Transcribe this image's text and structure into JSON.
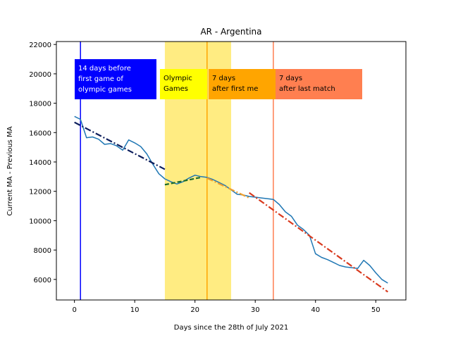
{
  "chart_data": {
    "type": "line",
    "title": "AR - Argentina",
    "xlabel": "Days since the 28th of July 2021",
    "ylabel": "Current MA - Previous MA",
    "xlim": [
      -3,
      55
    ],
    "ylim": [
      4600,
      22200
    ],
    "xticks": [
      0,
      10,
      20,
      30,
      40,
      50
    ],
    "yticks": [
      6000,
      8000,
      10000,
      12000,
      14000,
      16000,
      18000,
      20000,
      22000
    ],
    "grid": false,
    "series": [
      {
        "color": "#1f77b4",
        "x": [
          0,
          1,
          2,
          3,
          4,
          5,
          6,
          7,
          8,
          9,
          10,
          11,
          12,
          13,
          14,
          15,
          16,
          17,
          18,
          19,
          20,
          21,
          22,
          23,
          24,
          25,
          26,
          27,
          28,
          29,
          30,
          31,
          32,
          33,
          34,
          35,
          36,
          37,
          38,
          39,
          40,
          41,
          42,
          43,
          44,
          45,
          46,
          47,
          48,
          49,
          50,
          51,
          52
        ],
        "values": [
          17100,
          16900,
          15650,
          15700,
          15550,
          15200,
          15250,
          15100,
          14800,
          15500,
          15300,
          15050,
          14550,
          13850,
          13200,
          12850,
          12650,
          12500,
          12650,
          12900,
          13100,
          13000,
          12950,
          12800,
          12600,
          12400,
          12100,
          11800,
          11750,
          11650,
          11600,
          11550,
          11500,
          11450,
          11100,
          10600,
          10300,
          9700,
          9400,
          9000,
          7750,
          7500,
          7350,
          7150,
          6950,
          6850,
          6800,
          6750,
          7300,
          6950,
          6450,
          6000,
          5750
        ]
      }
    ],
    "trend_lines": [
      {
        "color": "#0c1d5c",
        "style": "dashdot",
        "x": [
          0,
          15
        ],
        "values": [
          16700,
          13500
        ]
      },
      {
        "color": "#1b6b2a",
        "style": "dashed",
        "x": [
          15,
          21
        ],
        "values": [
          12450,
          12950
        ]
      },
      {
        "color": "#f0a030",
        "style": "dashdot",
        "x": [
          22,
          29
        ],
        "values": [
          12900,
          11550
        ]
      },
      {
        "color": "#d93a1e",
        "style": "dashdot",
        "x": [
          29,
          52
        ],
        "values": [
          11900,
          5150
        ]
      }
    ],
    "spans": [
      {
        "x0": 15,
        "x1": 26,
        "color": "#ffe552",
        "opacity": 0.72
      }
    ],
    "vlines": [
      {
        "x": 1,
        "color": "#0000ff"
      },
      {
        "x": 22,
        "color": "#ffa500"
      },
      {
        "x": 33,
        "color": "#ff7f50"
      }
    ],
    "annotations": [
      {
        "text": "14 days before\nfirst game of\nolympic games",
        "box": "#0000ff",
        "color": "#ffffff"
      },
      {
        "text": "Olympic\nGames",
        "box": "#ffff00",
        "color": "#000000"
      },
      {
        "text": "7 days\nafter first me",
        "box": "#ffa500",
        "color": "#000000"
      },
      {
        "text": "7 days\nafter last match",
        "box": "#ff7f50",
        "color": "#000000"
      }
    ]
  }
}
